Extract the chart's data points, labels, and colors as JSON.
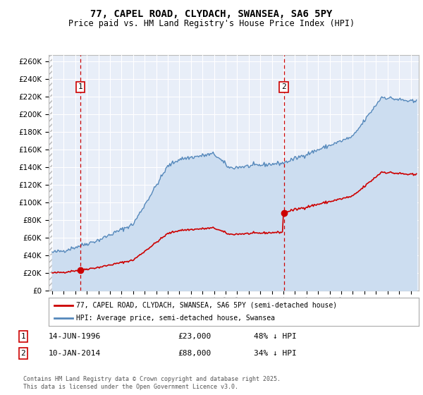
{
  "title": "77, CAPEL ROAD, CLYDACH, SWANSEA, SA6 5PY",
  "subtitle": "Price paid vs. HM Land Registry's House Price Index (HPI)",
  "ylabel_ticks": [
    "£0",
    "£20K",
    "£40K",
    "£60K",
    "£80K",
    "£100K",
    "£120K",
    "£140K",
    "£160K",
    "£180K",
    "£200K",
    "£220K",
    "£240K",
    "£260K"
  ],
  "ytick_values": [
    0,
    20000,
    40000,
    60000,
    80000,
    100000,
    120000,
    140000,
    160000,
    180000,
    200000,
    220000,
    240000,
    260000
  ],
  "xmin": 1993.7,
  "xmax": 2025.7,
  "ymin": 0,
  "ymax": 267000,
  "sale1_date": 1996.45,
  "sale1_price": 23000,
  "sale1_label": "1",
  "sale1_text": "14-JUN-1996",
  "sale1_amount": "£23,000",
  "sale1_pct": "48% ↓ HPI",
  "sale2_date": 2014.03,
  "sale2_price": 88000,
  "sale2_label": "2",
  "sale2_text": "10-JAN-2014",
  "sale2_amount": "£88,000",
  "sale2_pct": "34% ↓ HPI",
  "property_color": "#cc0000",
  "hpi_color": "#5588bb",
  "hpi_fill_color": "#ccddf0",
  "legend_property": "77, CAPEL ROAD, CLYDACH, SWANSEA, SA6 5PY (semi-detached house)",
  "legend_hpi": "HPI: Average price, semi-detached house, Swansea",
  "footnote": "Contains HM Land Registry data © Crown copyright and database right 2025.\nThis data is licensed under the Open Government Licence v3.0.",
  "background_color": "#e8eef8",
  "grid_color": "#ffffff",
  "fig_bg": "#ffffff",
  "title_fontsize": 10,
  "subtitle_fontsize": 8.5
}
